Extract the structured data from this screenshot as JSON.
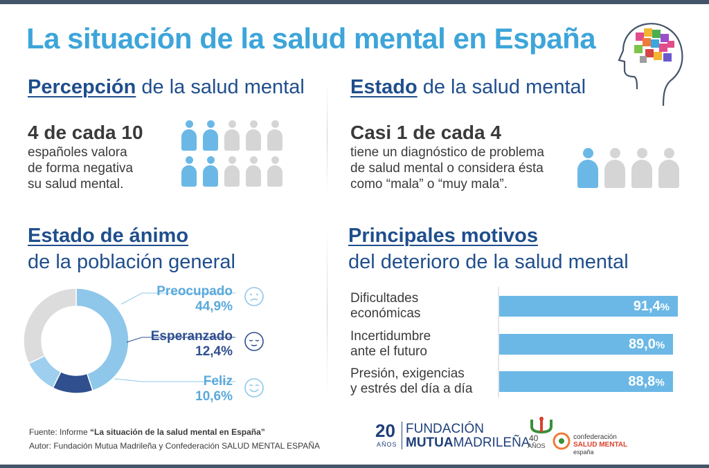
{
  "title": "La situación de la salud mental en España",
  "percepcion": {
    "title_bold": "Percepción",
    "title_rest": " de la salud mental",
    "stat": "4 de cada 10",
    "desc": [
      "españoles valora",
      "de forma negativa",
      "su salud mental."
    ],
    "highlighted": 4,
    "total": 10
  },
  "estado": {
    "title_bold": "Estado",
    "title_rest": " de la salud mental",
    "stat": "Casi 1 de cada 4",
    "desc": [
      "tiene un diagnóstico de problema",
      "de salud mental o considera ésta",
      "como “mala” o “muy mala”."
    ],
    "highlighted": 1,
    "total": 4
  },
  "animo": {
    "title_line1": "Estado de ánimo",
    "title_line2": "de la población general"
  },
  "motivos": {
    "title_line1": "Principales motivos",
    "title_line2": "del deterioro de la salud mental"
  },
  "chart_data": [
    {
      "type": "pie",
      "categories": [
        "Preocupado",
        "Esperanzado",
        "Feliz"
      ],
      "values": [
        44.9,
        12.4,
        10.6
      ],
      "labels": [
        "44,9%",
        "12,4%",
        "10,6%"
      ],
      "colors": [
        "#8fc7ea",
        "#2f4f8f",
        "#9fcfee"
      ],
      "remainder_color": "#dcdcdc"
    },
    {
      "type": "bar",
      "categories": [
        [
          "Dificultades",
          "económicas"
        ],
        [
          "Incertidumbre",
          "ante el futuro"
        ],
        [
          "Presión, exigencias",
          "y estrés del día a día"
        ]
      ],
      "values": [
        91.4,
        89.0,
        88.8
      ],
      "labels": [
        [
          "91,4",
          "%"
        ],
        [
          "89,0",
          "%"
        ],
        [
          "88,8",
          "%"
        ]
      ],
      "color": "#6bb8e6"
    }
  ],
  "source": {
    "line1_prefix": "Fuente: Informe ",
    "line1_bold": "“La situación de la salud mental en España”",
    "line2": "Autor: Fundación Mutua Madrileña y Confederación SALUD MENTAL ESPAÑA"
  },
  "logos": {
    "fmm_num": "20",
    "fmm_anos": "AÑOS",
    "fmm_line1": "FUNDACIÓN",
    "fmm_line2a": "MUTUA",
    "fmm_line2b": "MADRILEÑA",
    "conf_num": "40",
    "conf_anos": "AÑOS",
    "conf_line1": "confederación",
    "conf_line2": "SALUD MENTAL",
    "conf_line3": "españa"
  },
  "colors": {
    "accent": "#3da5d9",
    "navy": "#1f4e8c",
    "person_on": "#6bb8e6",
    "person_off": "#d5d5d5"
  }
}
